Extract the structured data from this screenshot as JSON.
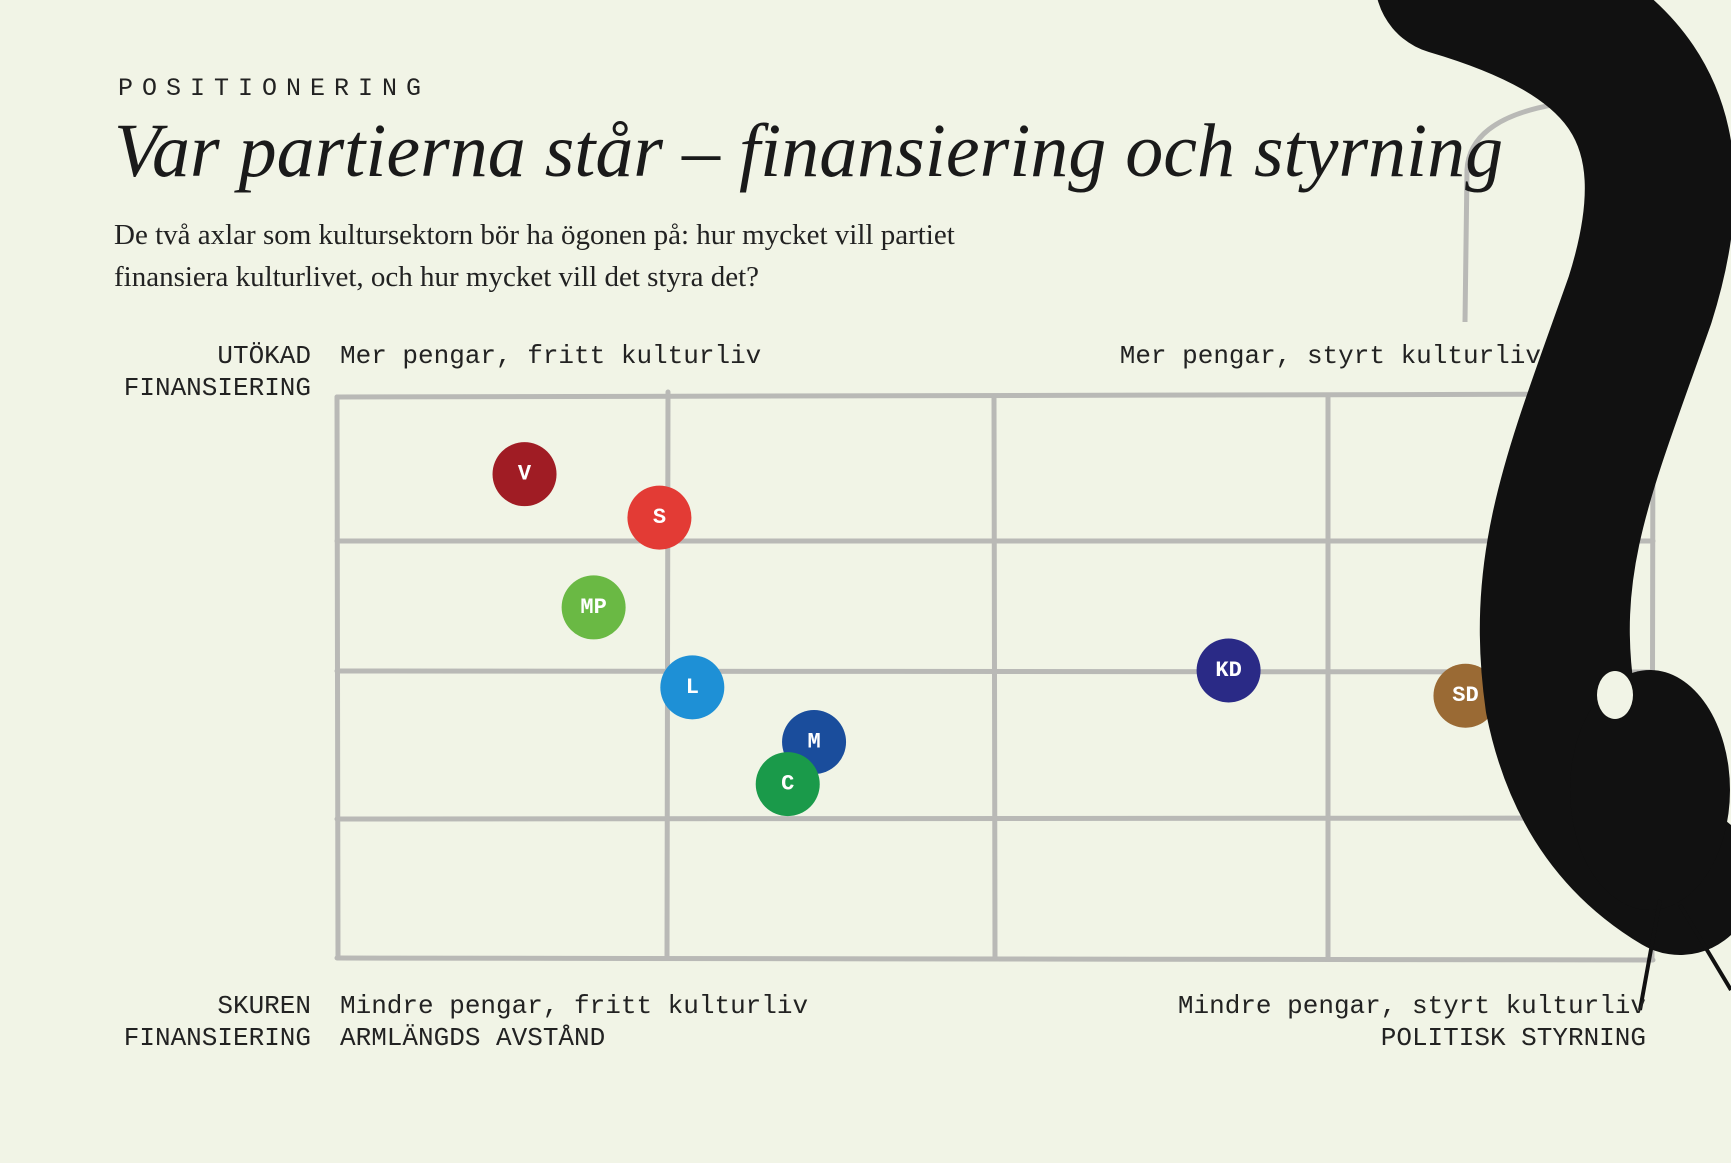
{
  "chart_data": {
    "type": "scatter",
    "kicker": "POSITIONERING",
    "title": "Var partierna står – finansiering och styrning",
    "subtitle": "De två axlar som kultursektorn bör ha ögonen på: hur mycket vill partiet finansiera kulturlivet, och hur mycket vill det styra det?",
    "y_label_high": [
      "UTÖKAD",
      "FINANSIERING"
    ],
    "y_label_low": [
      "SKUREN",
      "FINANSIERING"
    ],
    "x_label_left": "ARMLÄNGDS AVSTÅND",
    "x_label_right": "POLITISK STYRNING",
    "quadrant_labels": {
      "top_left": "Mer pengar, fritt kulturliv",
      "top_right": "Mer pengar, styrt kulturliv",
      "bottom_left": "Mindre pengar, fritt kulturliv",
      "bottom_right": "Mindre pengar, styrt kulturliv"
    },
    "xlim": [
      0,
      4
    ],
    "ylim": [
      0,
      4
    ],
    "points": [
      {
        "label": "V",
        "x": 0.57,
        "y": 3.45,
        "color": "#a01c24"
      },
      {
        "label": "S",
        "x": 0.98,
        "y": 3.14,
        "color": "#e33b35"
      },
      {
        "label": "MP",
        "x": 0.78,
        "y": 2.5,
        "color": "#6ab944"
      },
      {
        "label": "L",
        "x": 1.08,
        "y": 1.93,
        "color": "#1e90d6"
      },
      {
        "label": "M",
        "x": 1.45,
        "y": 1.54,
        "color": "#1a4d9c"
      },
      {
        "label": "C",
        "x": 1.37,
        "y": 1.24,
        "color": "#1a9a4a"
      },
      {
        "label": "KD",
        "x": 2.71,
        "y": 2.05,
        "color": "#2a2a86"
      },
      {
        "label": "SD",
        "x": 3.43,
        "y": 1.87,
        "color": "#9a6a34"
      }
    ]
  }
}
